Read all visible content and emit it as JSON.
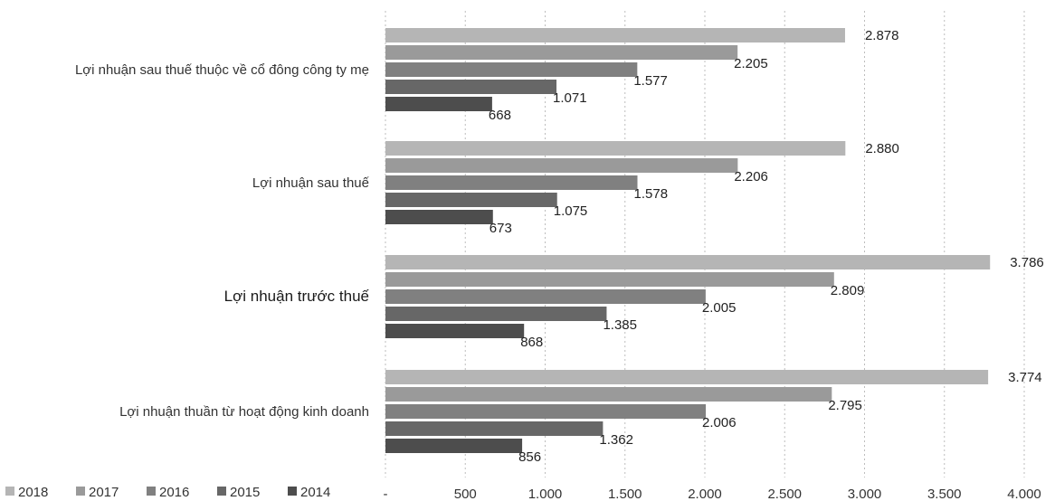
{
  "chart_data": {
    "type": "bar",
    "orientation": "horizontal",
    "categories": [
      "Lợi nhuận sau thuế thuộc về cổ đông công ty mẹ",
      "Lợi nhuận sau thuế",
      "Lợi nhuận trước thuế",
      "Lợi nhuận thuần từ hoạt động kinh doanh"
    ],
    "series": [
      {
        "name": "2018",
        "color": "#b5b5b5",
        "values": [
          2878,
          2880,
          3786,
          3774
        ],
        "labels": [
          "2.878",
          "2.880",
          "3.786",
          "3.774"
        ]
      },
      {
        "name": "2017",
        "color": "#9a9a9a",
        "values": [
          2205,
          2206,
          2809,
          2795
        ],
        "labels": [
          "2.205",
          "2.206",
          "2.809",
          "2.795"
        ]
      },
      {
        "name": "2016",
        "color": "#808080",
        "values": [
          1577,
          1578,
          2005,
          2006
        ],
        "labels": [
          "1.577",
          "1.578",
          "2.005",
          "2.006"
        ]
      },
      {
        "name": "2015",
        "color": "#676767",
        "values": [
          1071,
          1075,
          1385,
          1362
        ],
        "labels": [
          "1.071",
          "1.075",
          "1.385",
          "1.362"
        ]
      },
      {
        "name": "2014",
        "color": "#4d4d4d",
        "values": [
          668,
          673,
          868,
          856
        ],
        "labels": [
          "668",
          "673",
          "868",
          "856"
        ]
      }
    ],
    "xlim": [
      0,
      4000
    ],
    "x_ticks": [
      0,
      500,
      1000,
      1500,
      2000,
      2500,
      3000,
      3500,
      4000
    ],
    "x_tick_labels": [
      "-",
      "500",
      "1.000",
      "1.500",
      "2.000",
      "2.500",
      "3.000",
      "3.500",
      "4.000"
    ],
    "grid": true,
    "legend_position": "bottom-left",
    "title": "",
    "xlabel": "",
    "ylabel": ""
  }
}
